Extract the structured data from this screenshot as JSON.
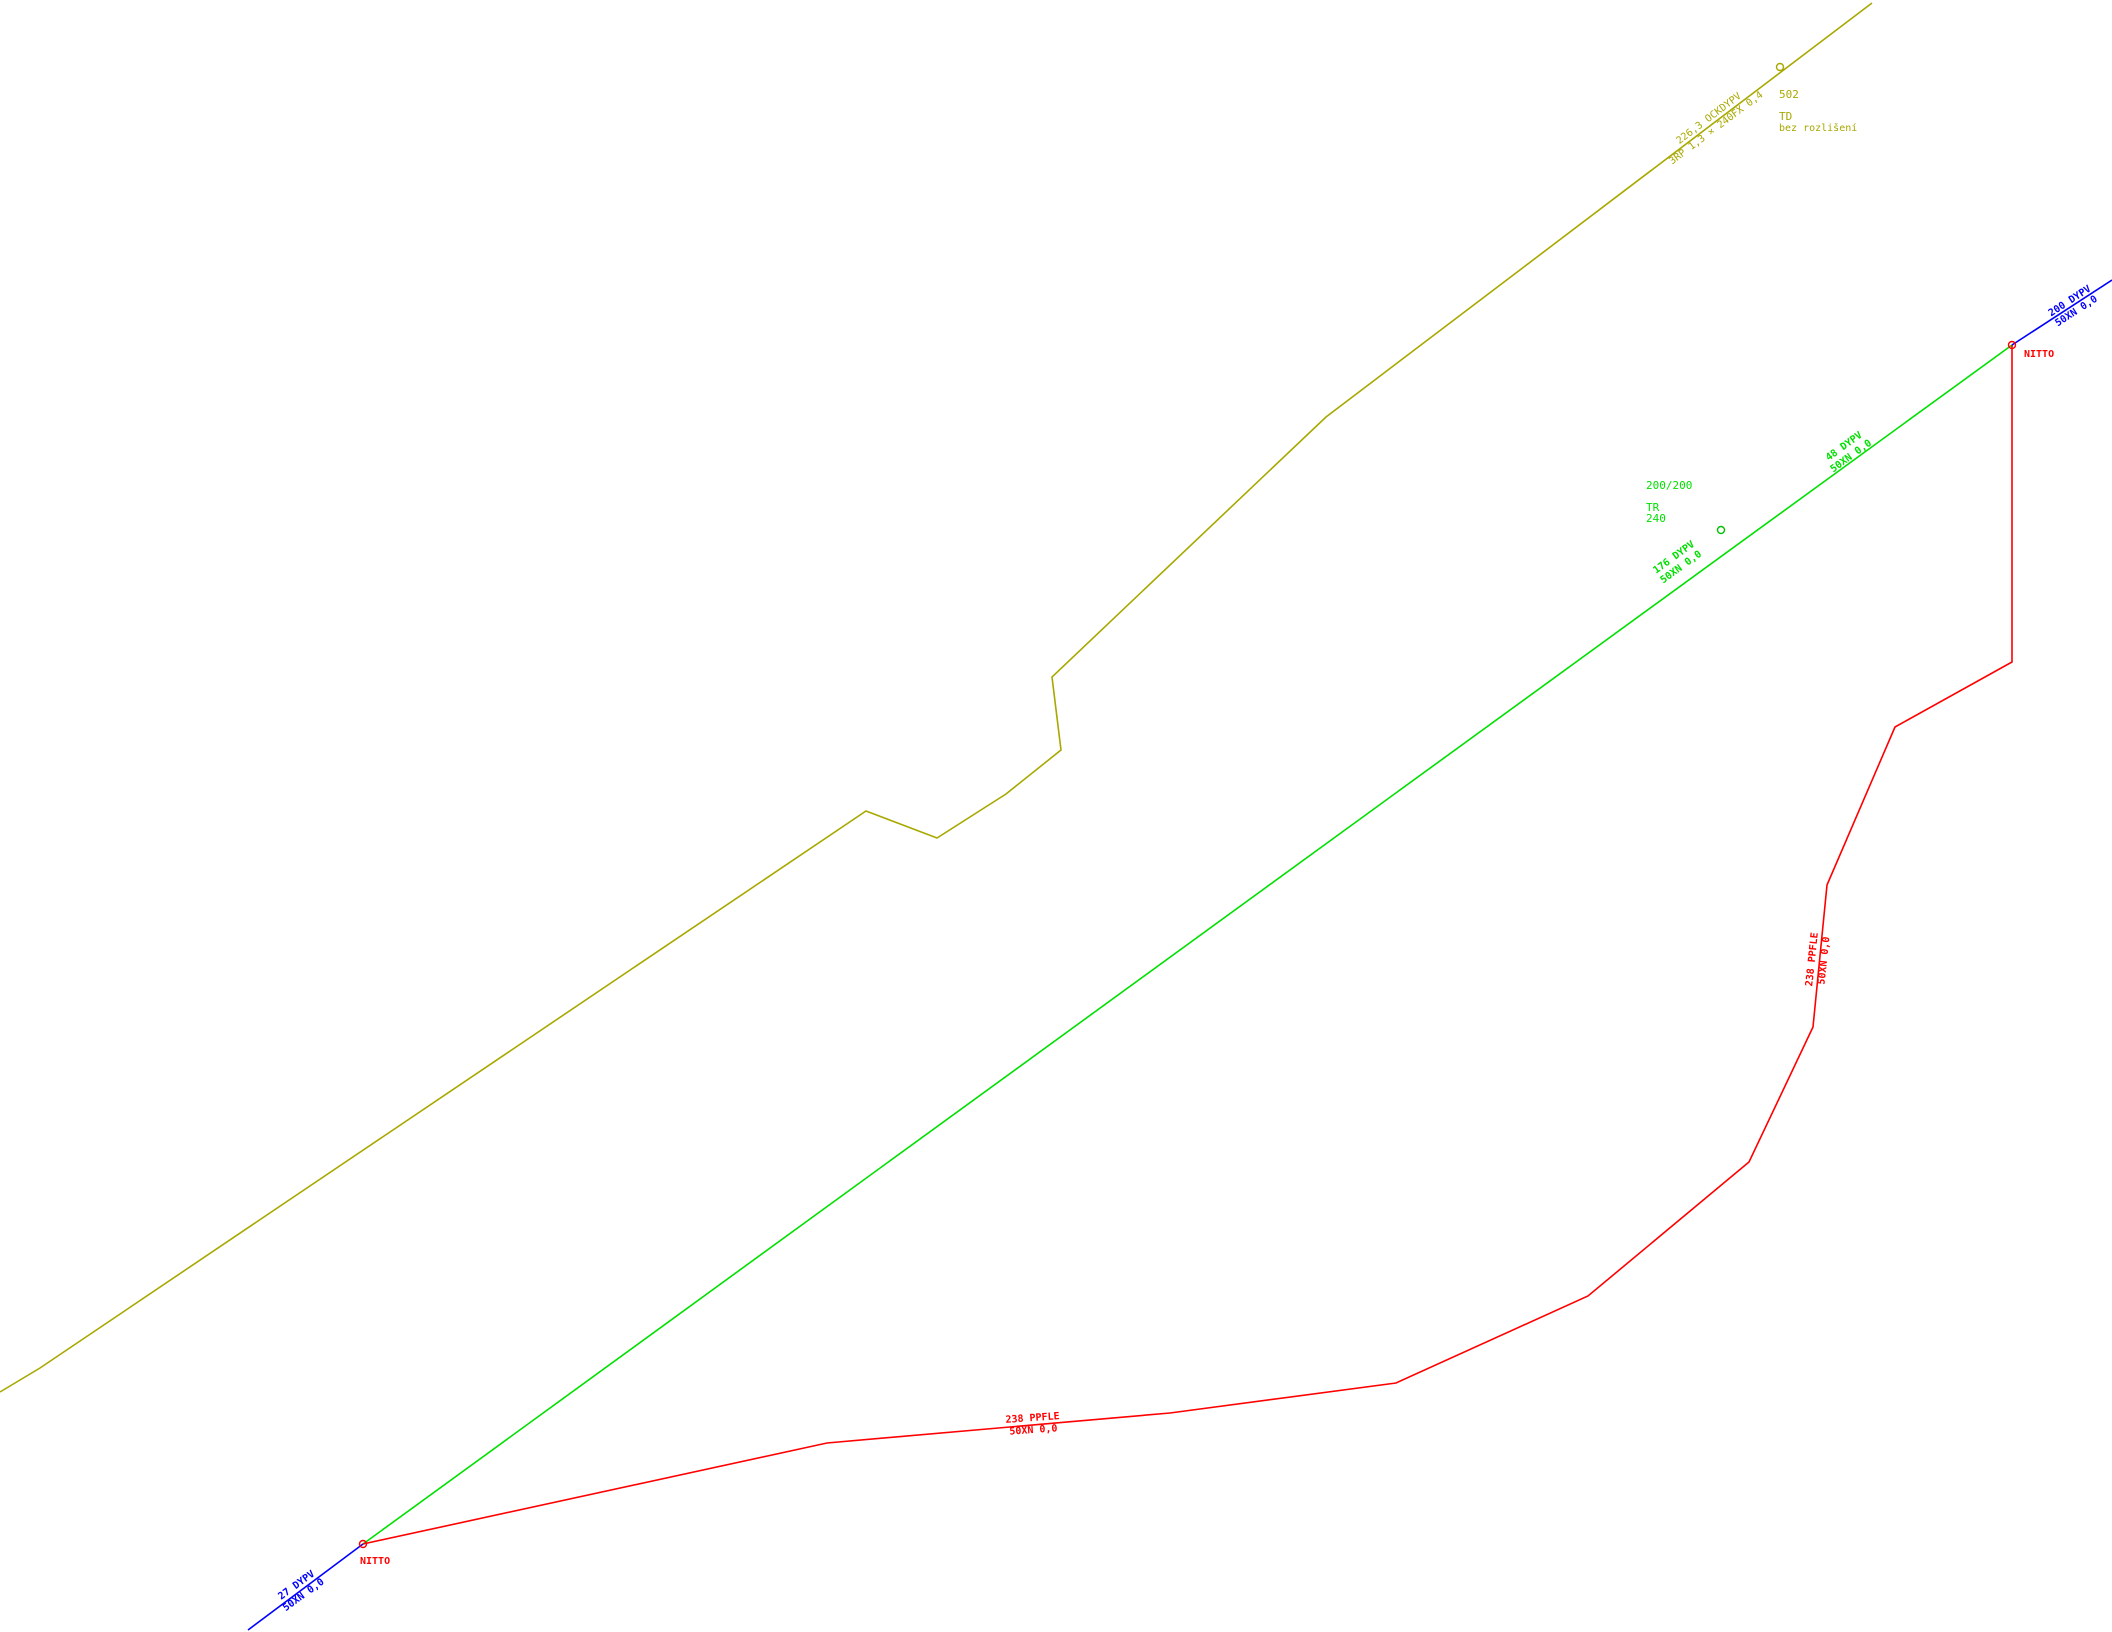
{
  "colors": {
    "olive": "#a8a800",
    "green": "#00e000",
    "red": "#ff0000",
    "blue": "#0000ff"
  },
  "olive_line": {
    "label_1": "226,3 OCKDYPV",
    "label_2": "3RP 1,3 × 240FX 0,4",
    "node_number": "502",
    "node_type": "TD",
    "node_note": "bez rozlišení"
  },
  "green_line": {
    "header_1": "200/200",
    "header_2": "TR",
    "header_3": "240",
    "seg_upper_1": "48 DYPV",
    "seg_upper_2": "50XN 0,0",
    "seg_lower_1": "176 DYPV",
    "seg_lower_2": "50XN 0,0"
  },
  "red_line": {
    "bottom_1": "238 PPFLE",
    "bottom_2": "50XN 0,0",
    "right_1": "238 PPFLE",
    "right_2": "50XN 0,0",
    "node_top": "NITTO",
    "node_bottom": "NITTO"
  },
  "blue_stubs": {
    "top_1": "200 DYPV",
    "top_2": "50XN 0,0",
    "bottom_1": "27 DYPV",
    "bottom_2": "50XN 0,0"
  }
}
